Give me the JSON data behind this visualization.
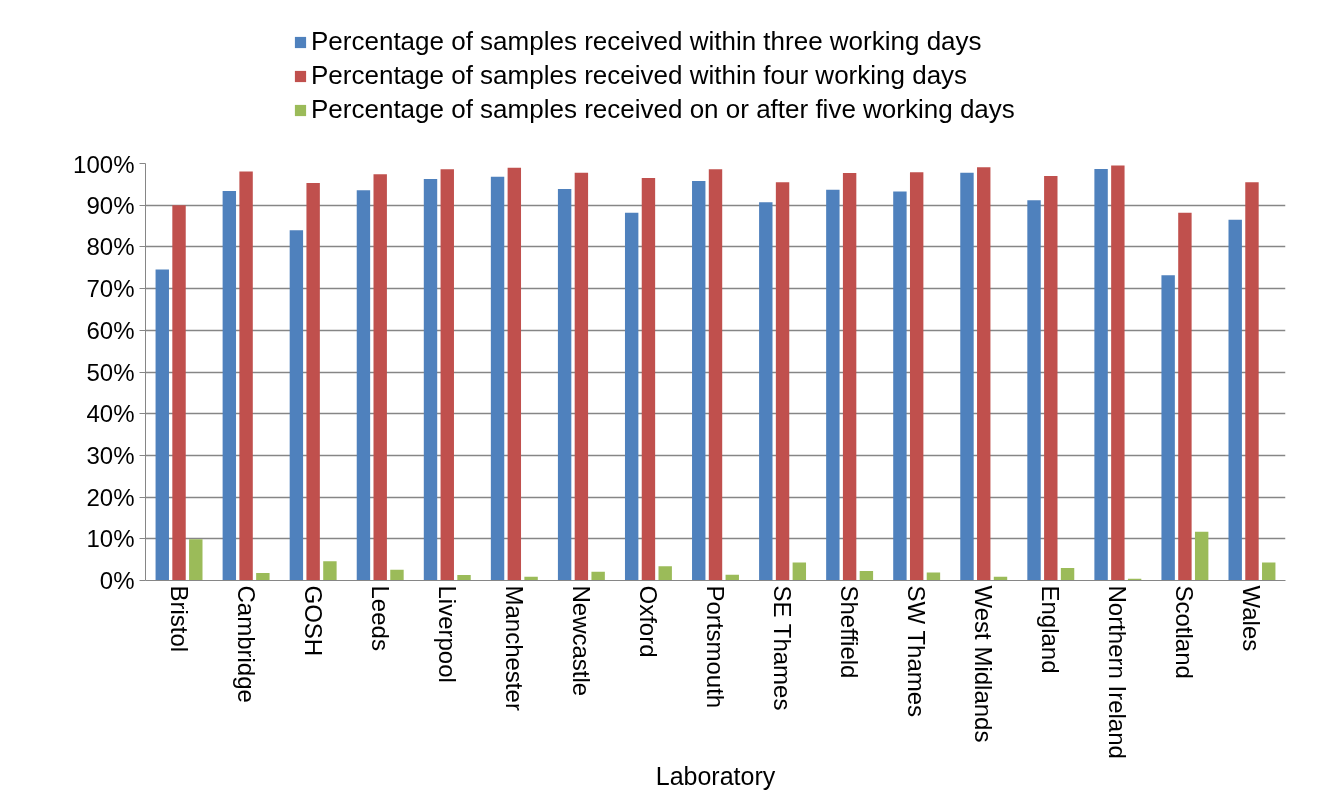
{
  "chart_data": {
    "type": "bar",
    "xlabel": "Laboratory",
    "categories": [
      "Bristol",
      "Cambridge",
      "GOSH",
      "Leeds",
      "Liverpool",
      "Manchester",
      "Newcastle",
      "Oxford",
      "Portsmouth",
      "SE Thames",
      "Sheffield",
      "SW Thames",
      "West Midlands",
      "England",
      "Northern Ireland",
      "Scotland",
      "Wales"
    ],
    "series": [
      {
        "name": "Percentage of samples received within three working days",
        "color": "#4f81bd",
        "values": [
          74.6,
          93.4,
          84.0,
          93.6,
          96.3,
          96.8,
          93.9,
          88.2,
          95.8,
          90.7,
          93.7,
          93.3,
          97.8,
          91.2,
          98.7,
          73.2,
          86.5
        ]
      },
      {
        "name": "Percentage of samples received within four working days",
        "color": "#c0504d",
        "values": [
          90.0,
          98.1,
          95.3,
          97.4,
          98.6,
          99.0,
          97.8,
          96.5,
          98.6,
          95.5,
          97.7,
          97.9,
          99.1,
          97.0,
          99.5,
          88.2,
          95.5
        ]
      },
      {
        "name": "Percentage of samples received on or after five working days",
        "color": "#9bbb59",
        "values": [
          9.9,
          1.8,
          4.6,
          2.6,
          1.3,
          0.9,
          2.1,
          3.4,
          1.4,
          4.3,
          2.3,
          1.9,
          0.9,
          3.0,
          0.4,
          11.7,
          4.3
        ]
      }
    ],
    "ylim": [
      0,
      100
    ],
    "yticks": [
      {
        "value": 0,
        "label": "0%"
      },
      {
        "value": 10,
        "label": "10%"
      },
      {
        "value": 20,
        "label": "20%"
      },
      {
        "value": 30,
        "label": "30%"
      },
      {
        "value": 40,
        "label": "40%"
      },
      {
        "value": 50,
        "label": "50%"
      },
      {
        "value": 60,
        "label": "60%"
      },
      {
        "value": 70,
        "label": "70%"
      },
      {
        "value": 80,
        "label": "80%"
      },
      {
        "value": 90,
        "label": "90%"
      },
      {
        "value": 100,
        "label": "100%"
      }
    ],
    "grid": "y",
    "legend": "top"
  }
}
